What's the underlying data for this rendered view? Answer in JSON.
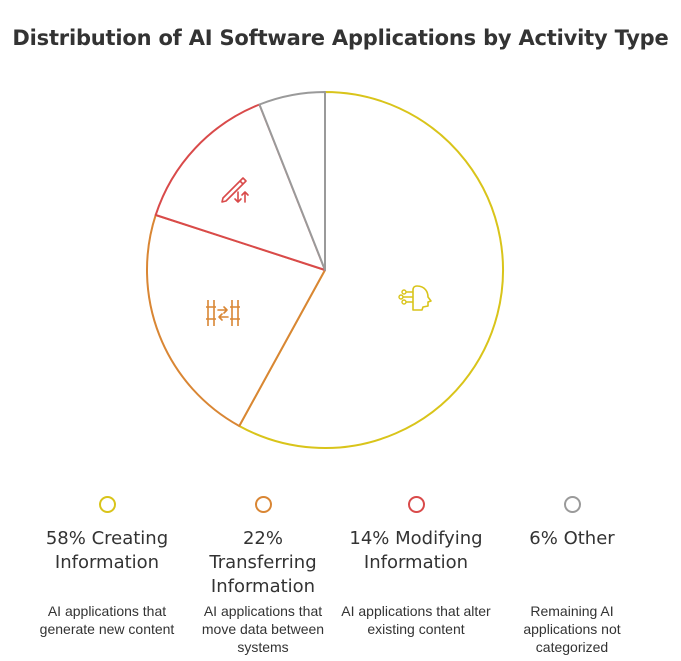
{
  "chart_data": {
    "type": "pie",
    "title": "Distribution of AI Software Applications by Activity Type",
    "slices": [
      {
        "label": "58% Creating Information",
        "value": 58,
        "color": "#d9c41a",
        "icon": "ai-head-icon",
        "description": "AI applications that generate new content"
      },
      {
        "label": "22% Transferring Information",
        "value": 22,
        "color": "#d98634",
        "icon": "transfer-icon",
        "description": "AI applications that move data between systems"
      },
      {
        "label": "14% Modifying Information",
        "value": 14,
        "color": "#d94a4a",
        "icon": "edit-pencil-icon",
        "description": "AI applications that alter existing content"
      },
      {
        "label": "6% Other",
        "value": 6,
        "color": "#9a9a9a",
        "icon": "",
        "description": "Remaining AI applications not categorized"
      }
    ],
    "legend_position": "bottom"
  }
}
